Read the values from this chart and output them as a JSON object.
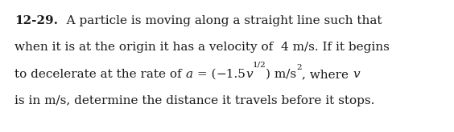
{
  "background_color": "#ffffff",
  "fig_width": 5.64,
  "fig_height": 1.65,
  "dpi": 100,
  "line1_bold": "12-29.",
  "line1_normal": "   A particle is moving along a straight line such that",
  "line2": "when it is at the origin it has a velocity of  4 m/s. If it begins",
  "line3_pre": "to decelerate at the rate of ",
  "line3_a": "a",
  "line3_eq": " = (",
  "line3_minus": "−1.5",
  "line3_v": "v",
  "line3_sup": "1/2",
  "line3_post": ") m/s",
  "line3_sup2": "2",
  "line3_where": ", where ",
  "line3_v2": "v",
  "line4": "is in m/s, determine the distance it travels before it stops.",
  "fontsize": 11.0,
  "fontsize_small": 7.5,
  "font": "DejaVu Serif",
  "text_color": "#1a1a1a"
}
